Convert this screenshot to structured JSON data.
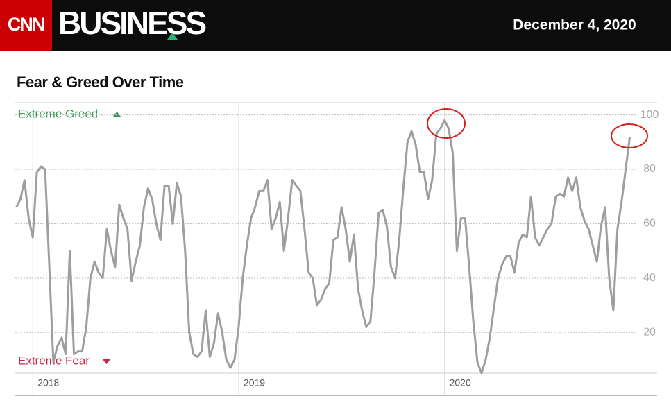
{
  "header": {
    "logo": "CNN",
    "brand": "BUSINESS",
    "date": "December 4, 2020"
  },
  "chart_data": {
    "type": "line",
    "title": "Fear & Greed Over Time",
    "annotations": {
      "top": "Extreme Greed",
      "bottom": "Extreme Fear"
    },
    "color": "#9e9e9e",
    "x": [
      2017.92,
      2017.94,
      2017.96,
      2017.98,
      2018.0,
      2018.02,
      2018.04,
      2018.06,
      2018.08,
      2018.1,
      2018.12,
      2018.14,
      2018.16,
      2018.18,
      2018.2,
      2018.22,
      2018.24,
      2018.26,
      2018.28,
      2018.3,
      2018.32,
      2018.34,
      2018.36,
      2018.38,
      2018.4,
      2018.42,
      2018.44,
      2018.46,
      2018.48,
      2018.5,
      2018.52,
      2018.54,
      2018.56,
      2018.58,
      2018.6,
      2018.62,
      2018.64,
      2018.66,
      2018.68,
      2018.7,
      2018.72,
      2018.74,
      2018.76,
      2018.78,
      2018.8,
      2018.82,
      2018.84,
      2018.86,
      2018.88,
      2018.9,
      2018.92,
      2018.94,
      2018.96,
      2018.98,
      2019.0,
      2019.02,
      2019.04,
      2019.06,
      2019.08,
      2019.1,
      2019.12,
      2019.14,
      2019.16,
      2019.18,
      2019.2,
      2019.22,
      2019.24,
      2019.26,
      2019.28,
      2019.3,
      2019.32,
      2019.34,
      2019.36,
      2019.38,
      2019.4,
      2019.42,
      2019.44,
      2019.46,
      2019.48,
      2019.5,
      2019.52,
      2019.54,
      2019.56,
      2019.58,
      2019.6,
      2019.62,
      2019.64,
      2019.66,
      2019.68,
      2019.7,
      2019.72,
      2019.74,
      2019.76,
      2019.78,
      2019.8,
      2019.82,
      2019.84,
      2019.86,
      2019.88,
      2019.9,
      2019.92,
      2019.94,
      2019.96,
      2019.98,
      2020.0,
      2020.02,
      2020.04,
      2020.06,
      2020.08,
      2020.1,
      2020.12,
      2020.14,
      2020.16,
      2020.18,
      2020.2,
      2020.22,
      2020.24,
      2020.26,
      2020.28,
      2020.3,
      2020.32,
      2020.34,
      2020.36,
      2020.38,
      2020.4,
      2020.42,
      2020.44,
      2020.46,
      2020.48,
      2020.5,
      2020.52,
      2020.54,
      2020.56,
      2020.58,
      2020.6,
      2020.62,
      2020.64,
      2020.66,
      2020.68,
      2020.7,
      2020.72,
      2020.74,
      2020.76,
      2020.78,
      2020.8,
      2020.82,
      2020.84,
      2020.86,
      2020.88,
      2020.9
    ],
    "values": [
      66,
      69,
      76,
      62,
      55,
      79,
      81,
      80,
      45,
      9,
      15,
      18,
      12,
      50,
      12,
      13,
      13,
      22,
      40,
      46,
      42,
      40,
      58,
      50,
      44,
      67,
      62,
      58,
      39,
      46,
      52,
      66,
      73,
      69,
      60,
      54,
      74,
      74,
      60,
      75,
      70,
      50,
      20,
      12,
      11,
      13,
      28,
      11,
      16,
      27,
      20,
      10,
      7,
      10,
      22,
      40,
      52,
      62,
      66,
      72,
      72,
      76,
      58,
      62,
      68,
      50,
      62,
      76,
      74,
      72,
      58,
      42,
      40,
      30,
      32,
      36,
      38,
      54,
      55,
      66,
      58,
      46,
      56,
      36,
      28,
      22,
      24,
      42,
      64,
      65,
      59,
      44,
      40,
      54,
      73,
      90,
      94,
      89,
      79,
      79,
      69,
      76,
      93,
      95,
      98,
      95,
      86,
      50,
      62,
      62,
      44,
      24,
      9,
      5,
      10,
      18,
      29,
      40,
      45,
      48,
      48,
      42,
      53,
      56,
      55,
      70,
      55,
      52,
      55,
      58,
      60,
      70,
      71,
      70,
      77,
      72,
      77,
      66,
      61,
      58,
      52,
      46,
      59,
      66,
      40,
      28,
      58,
      68,
      80,
      92
    ],
    "xlim": [
      2017.915,
      2020.935
    ],
    "xticks": [
      2018,
      2019,
      2020
    ],
    "ylim": [
      5,
      104.5
    ],
    "yticks": [
      20,
      40,
      60,
      80,
      100
    ],
    "grid": true
  }
}
